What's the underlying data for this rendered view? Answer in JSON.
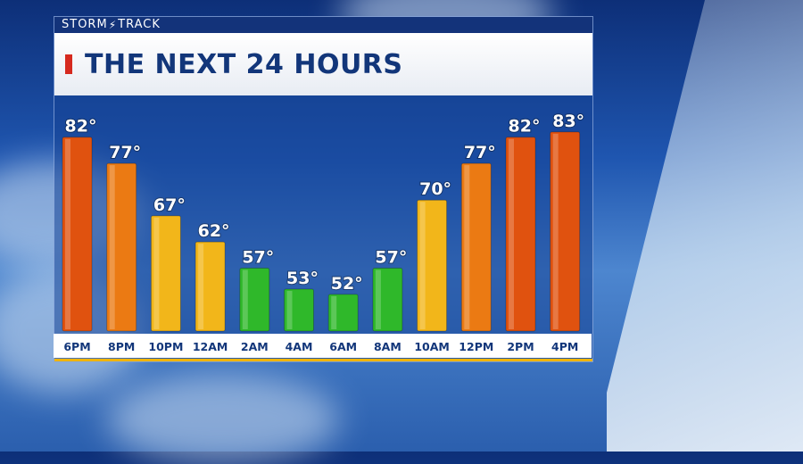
{
  "brand": {
    "storm": "STORM",
    "track": "TRACK"
  },
  "header": {
    "title": "THE NEXT 24 HOURS"
  },
  "colors": {
    "hot": "#e0520f",
    "warm": "#eb7a13",
    "mild": "#f2b61a",
    "cool": "#2fb82a",
    "title": "#12367a",
    "accent": "#d62a1f"
  },
  "chart_data": {
    "type": "bar",
    "title": "THE NEXT 24 HOURS",
    "categories": [
      "6PM",
      "8PM",
      "10PM",
      "12AM",
      "2AM",
      "4AM",
      "6AM",
      "8AM",
      "10AM",
      "12PM",
      "2PM",
      "4PM"
    ],
    "values": [
      82,
      77,
      67,
      62,
      57,
      53,
      52,
      57,
      70,
      77,
      82,
      83
    ],
    "labels": [
      "82°",
      "77°",
      "67°",
      "62°",
      "57°",
      "53°",
      "52°",
      "57°",
      "70°",
      "77°",
      "82°",
      "83°"
    ],
    "unit": "°",
    "ylim": [
      45,
      84
    ],
    "grid": false,
    "legend": "none"
  }
}
